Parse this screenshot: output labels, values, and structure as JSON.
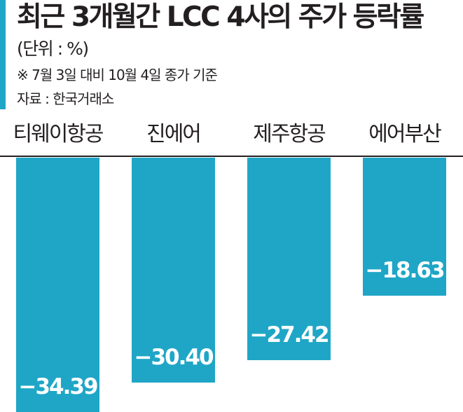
{
  "header": {
    "title": "최근 3개월간 LCC 4사의 주가 등락률",
    "unit": "(단위 : %)",
    "note": "※ 7월 3일 대비 10월 4일 종가 기준",
    "source": "자료 : 한국거래소"
  },
  "colors": {
    "bar": "#1fa6c6",
    "accent": "#1fa6c6",
    "axis": "#231f20",
    "text": "#231f20"
  },
  "chart_data": {
    "type": "bar",
    "orientation": "vertical-downward",
    "title": "최근 3개월간 LCC 4사의 주가 등락률",
    "subtitle": "(단위 : %)",
    "annotation": "※ 7월 3일 대비 10월 4일 종가 기준",
    "source": "자료 : 한국거래소",
    "categories": [
      "티웨이항공",
      "진에어",
      "제주항공",
      "에어부산"
    ],
    "values": [
      -34.39,
      -30.4,
      -27.42,
      -18.63
    ],
    "labels": [
      "−34.39",
      "−30.40",
      "−27.42",
      "−18.63"
    ],
    "xlabel": "",
    "ylabel": "%",
    "ylim": [
      -35,
      0
    ],
    "grid": false,
    "legend": "none"
  }
}
